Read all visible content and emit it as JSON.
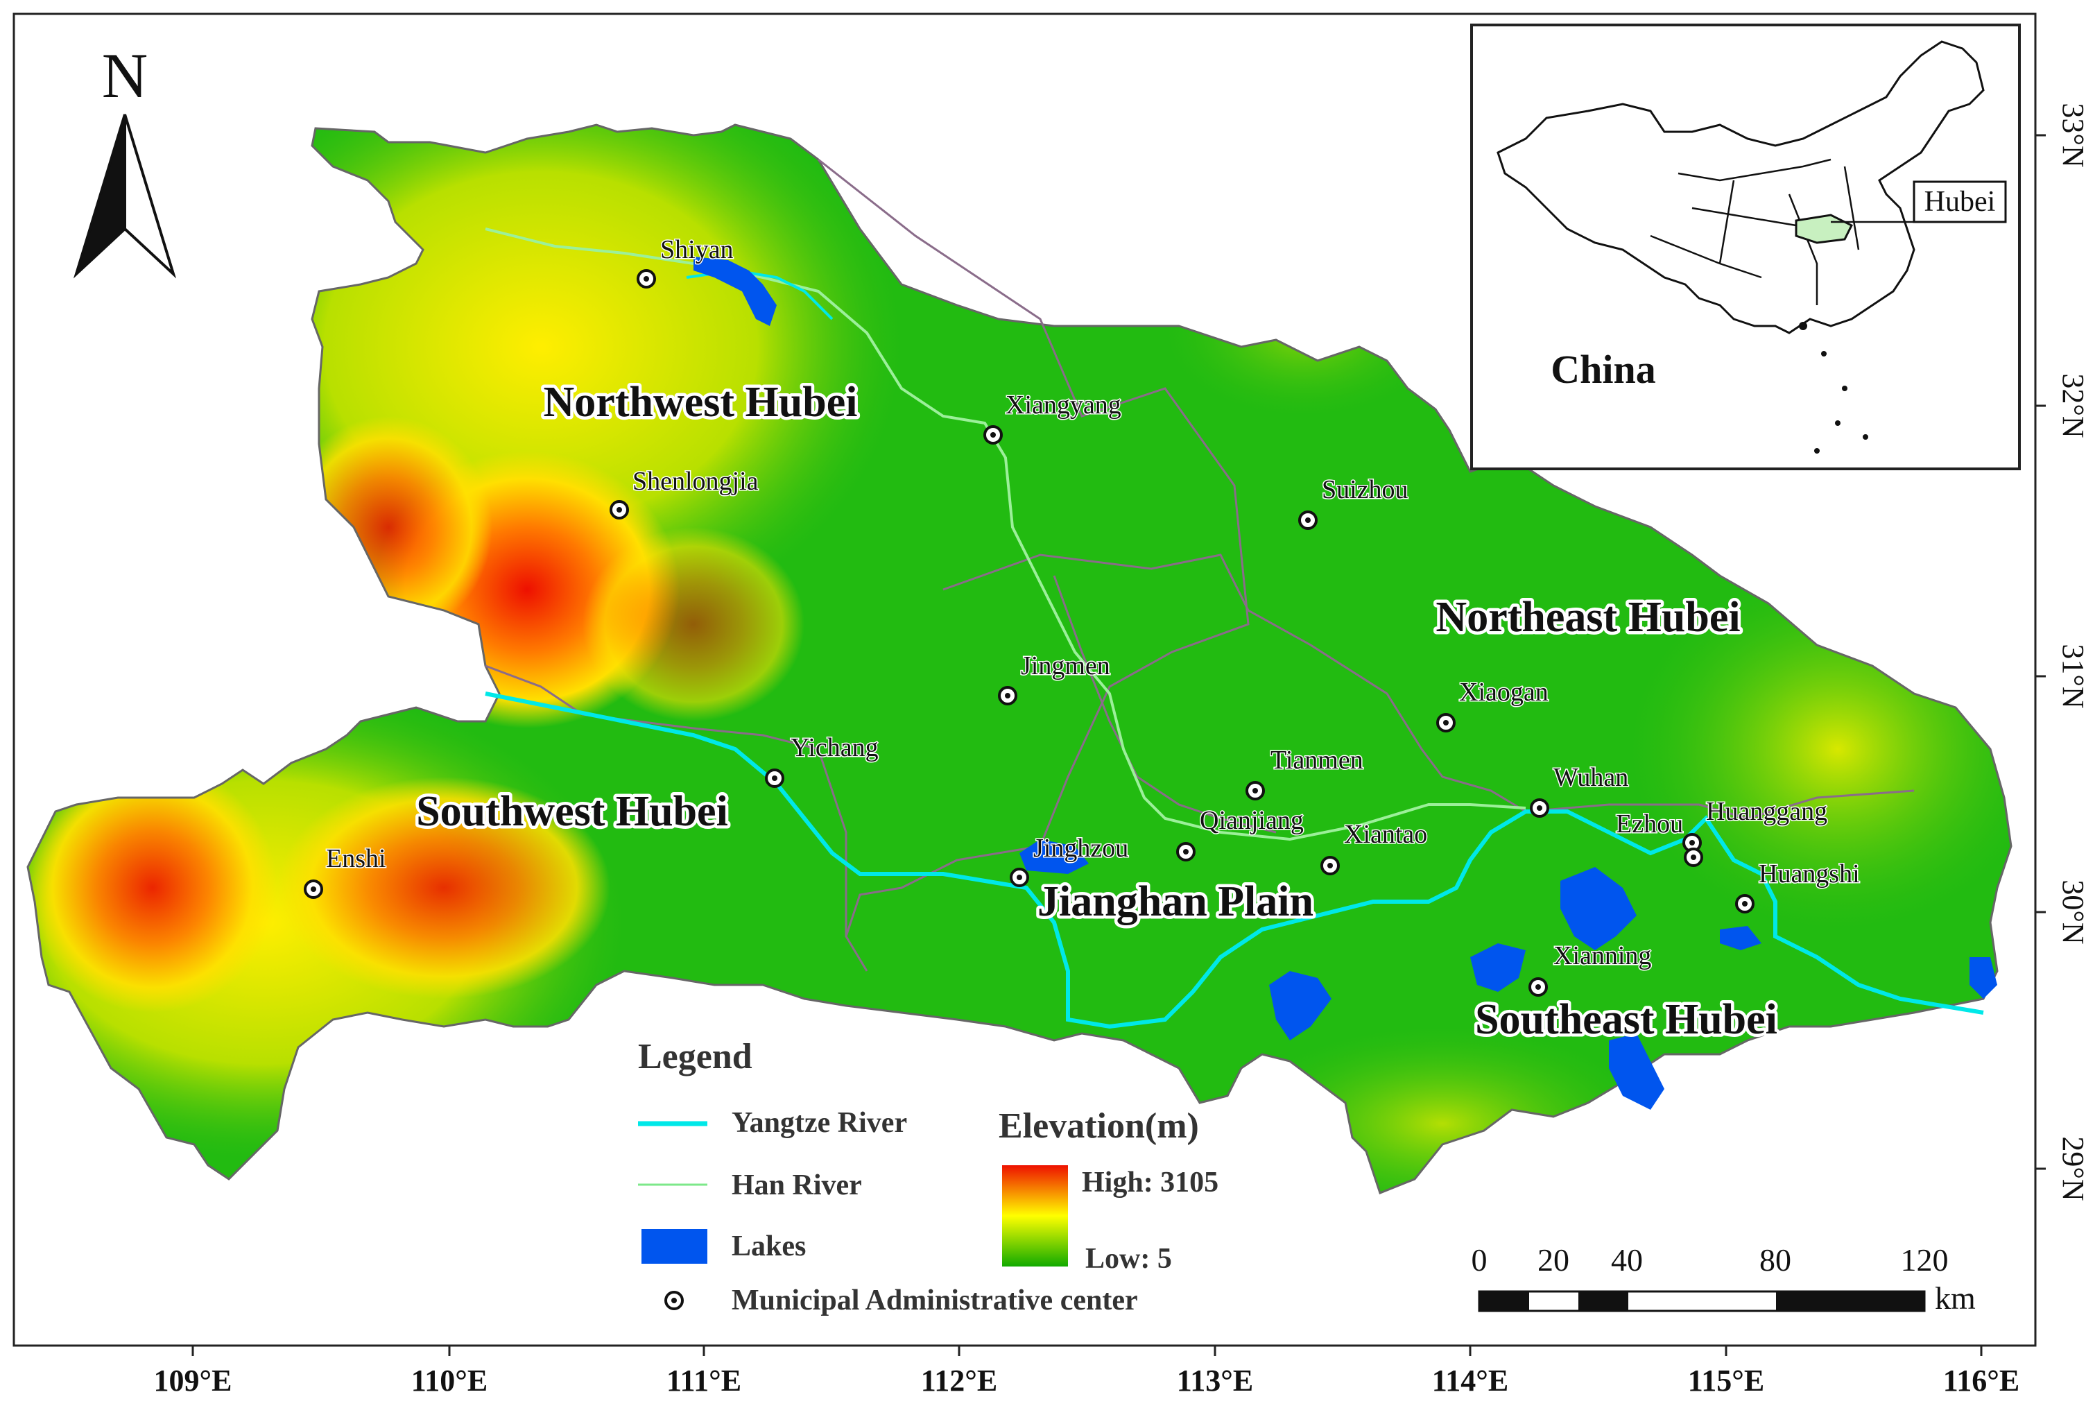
{
  "north_arrow": {
    "label": "N"
  },
  "regions": [
    {
      "name": "Northwest Hubei"
    },
    {
      "name": "Southwest Hubei"
    },
    {
      "name": "Northeast Hubei"
    },
    {
      "name": "Jianghan Plain"
    },
    {
      "name": "Southeast Hubei"
    }
  ],
  "cities": [
    {
      "name": "Shiyan"
    },
    {
      "name": "Xiangyang"
    },
    {
      "name": "Shenlongjia"
    },
    {
      "name": "Suizhou"
    },
    {
      "name": "Jingmen"
    },
    {
      "name": "Xiaogan"
    },
    {
      "name": "Yichang"
    },
    {
      "name": "Tianmen"
    },
    {
      "name": "Wuhan"
    },
    {
      "name": "Huanggang"
    },
    {
      "name": "Enshi"
    },
    {
      "name": "Qianjiang"
    },
    {
      "name": "Xiantao"
    },
    {
      "name": "Ezhou"
    },
    {
      "name": "Jinghzou"
    },
    {
      "name": "Huangshi"
    },
    {
      "name": "Xianning"
    }
  ],
  "inset": {
    "country": "China",
    "province": "Hubei",
    "province_color": "#c8f0c0"
  },
  "legend": {
    "title": "Legend",
    "items": [
      {
        "label": "Yangtze River",
        "color": "#00e8e8"
      },
      {
        "label": "Han River",
        "color": "#7de88a"
      },
      {
        "label": "Lakes",
        "color": "#0055ee"
      },
      {
        "label": "Municipal Administrative center"
      }
    ],
    "elevation": {
      "title": "Elevation(m)",
      "high": "High: 3105",
      "low": "Low: 5"
    }
  },
  "scale_bar": {
    "ticks": [
      "0",
      "20",
      "40",
      "80",
      "120"
    ],
    "unit": "km"
  },
  "lon_labels": [
    "109°E",
    "110°E",
    "111°E",
    "112°E",
    "113°E",
    "114°E",
    "115°E",
    "116°E"
  ],
  "lat_labels": [
    "33°N",
    "32°N",
    "31°N",
    "30°N",
    "29°N"
  ],
  "colors": {
    "high": "#ee1100",
    "mid": "#ffff00",
    "low": "#11aa00",
    "plain": "#22bb11"
  }
}
